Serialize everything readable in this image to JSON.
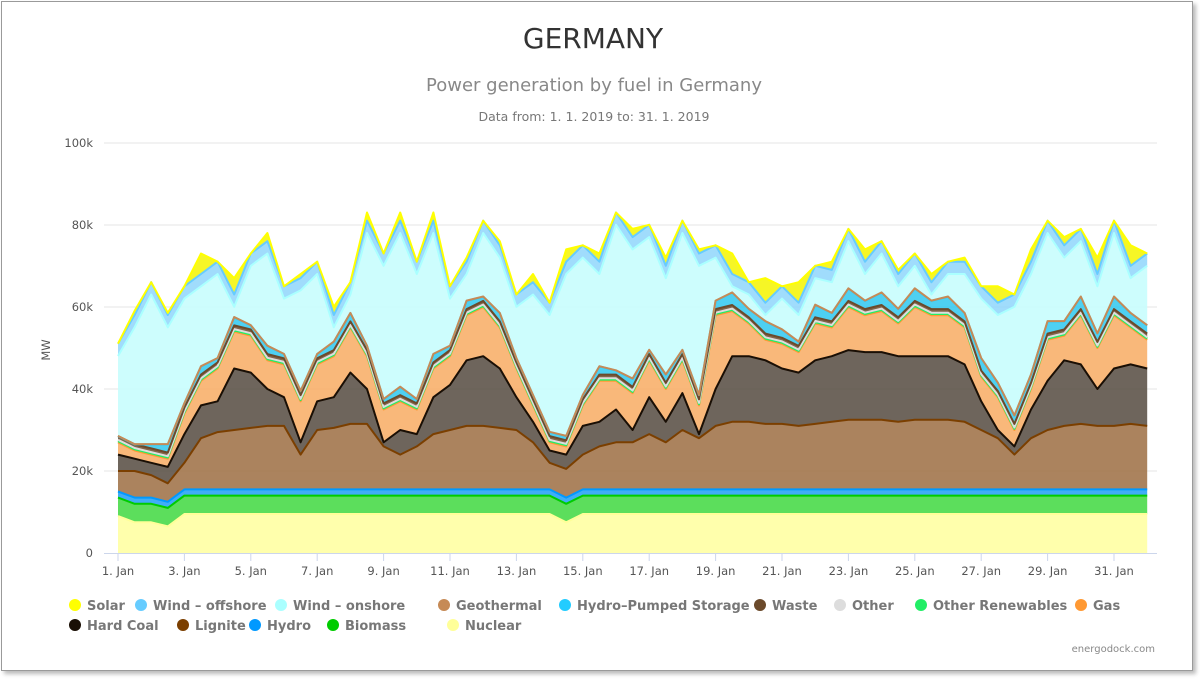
{
  "title": "GERMANY",
  "subtitle": "Power generation by fuel in Germany",
  "date_range": "Data from: 1. 1. 2019 to: 31. 1. 2019",
  "credits": "energodock.com",
  "chart_data": {
    "type": "area",
    "stacked": true,
    "ylabel": "MW",
    "ylim": [
      0,
      100000
    ],
    "y_ticks": [
      "0",
      "20k",
      "40k",
      "60k",
      "80k",
      "100k"
    ],
    "y_tick_values": [
      0,
      20000,
      40000,
      60000,
      80000,
      100000
    ],
    "x_ticks": [
      "1. Jan",
      "3. Jan",
      "5. Jan",
      "7. Jan",
      "9. Jan",
      "11. Jan",
      "13. Jan",
      "15. Jan",
      "17. Jan",
      "19. Jan",
      "21. Jan",
      "23. Jan",
      "25. Jan",
      "27. Jan",
      "29. Jan",
      "31. Jan"
    ],
    "x_start": "2019-01-01 00:00",
    "x_interval_hours": 12,
    "grid": true,
    "legend_placement": "bottom",
    "series": [
      {
        "name": "Solar",
        "color": "#ffff00",
        "fill": "#f5f500",
        "values": [
          0,
          1000,
          0,
          500,
          0,
          5000,
          0,
          4000,
          0,
          2000,
          0,
          1000,
          0,
          2000,
          0,
          2000,
          0,
          2000,
          0,
          2000,
          0,
          1000,
          0,
          1000,
          0,
          2000,
          0,
          3000,
          0,
          2000,
          0,
          2000,
          0,
          2000,
          0,
          1000,
          0,
          5000,
          0,
          6000,
          0,
          5000,
          0,
          2000,
          0,
          3000,
          0,
          1000,
          0,
          2000,
          0,
          1000,
          0,
          4000,
          0,
          3000,
          0,
          2000,
          0,
          4000,
          0,
          5000,
          0
        ]
      },
      {
        "name": "Wind – offshore",
        "color": "#66ccff",
        "fill": "#8fd6fb",
        "values": [
          3000,
          3000,
          3000,
          3000,
          3000,
          3000,
          3000,
          3000,
          3000,
          3000,
          3000,
          3000,
          3000,
          3000,
          3000,
          3000,
          3000,
          3000,
          3000,
          3000,
          3000,
          3000,
          3000,
          3000,
          3000,
          3000,
          3000,
          3000,
          3000,
          3000,
          3000,
          3000,
          3000,
          3000,
          3000,
          3000,
          3000,
          3000,
          3000,
          3000,
          3000,
          3000,
          3000,
          3000,
          3000,
          3000,
          3000,
          3000,
          3000,
          3000,
          3000,
          3000,
          3000,
          3000,
          3000,
          3000,
          3000,
          3000,
          3000,
          3000,
          3000,
          3000,
          3000
        ]
      },
      {
        "name": "Wind – onshore",
        "color": "#aaffff",
        "fill": "#c4fdfd",
        "values": [
          19500,
          28500,
          36500,
          28500,
          25500,
          19500,
          20500,
          2500,
          14500,
          22500,
          13500,
          24500,
          19500,
          3500,
          4500,
          27500,
          32500,
          37500,
          30500,
          29500,
          11500,
          6500,
          15500,
          13500,
          12500,
          24500,
          28500,
          39500,
          33500,
          22500,
          35500,
          31500,
          27500,
          23500,
          28500,
          31500,
          10500,
          1500,
          3500,
          1500,
          7500,
          6500,
          6500,
          7500,
          11500,
          6500,
          9500,
          5500,
          5500,
          1500,
          5500,
          9500,
          14500,
          16500,
          26500,
          24500,
          21500,
          15500,
          13500,
          11500,
          15500,
          8500,
          14500
        ]
      },
      {
        "name": "Geothermal",
        "color": "#c68a56",
        "fill": "#c68a56",
        "values": [
          50,
          50,
          50,
          50,
          50,
          50,
          50,
          50,
          50,
          50,
          50,
          50,
          50,
          50,
          50,
          50,
          50,
          50,
          50,
          50,
          50,
          50,
          50,
          50,
          50,
          50,
          50,
          50,
          50,
          50,
          50,
          50,
          50,
          50,
          50,
          50,
          50,
          50,
          50,
          50,
          50,
          50,
          50,
          50,
          50,
          50,
          50,
          50,
          50,
          50,
          50,
          50,
          50,
          50,
          50,
          50,
          50,
          50,
          50,
          50,
          50,
          50,
          50
        ]
      },
      {
        "name": "Hydro–Pumped Storage",
        "color": "#22ccff",
        "fill": "#2fc8f0",
        "values": [
          0,
          0,
          1000,
          2000,
          1000,
          2000,
          1000,
          2000,
          1000,
          2000,
          1000,
          1000,
          1000,
          2000,
          2000,
          1000,
          1000,
          2000,
          1000,
          2000,
          1000,
          2000,
          1000,
          2000,
          1000,
          1000,
          1000,
          1000,
          1000,
          2000,
          1000,
          2000,
          1000,
          2000,
          1000,
          1000,
          2000,
          3000,
          2000,
          3000,
          2000,
          1000,
          3000,
          2000,
          3000,
          2000,
          3000,
          2000,
          3000,
          2000,
          3000,
          2000,
          3000,
          2000,
          2000,
          2000,
          3000,
          2000,
          3000,
          2000,
          3000,
          2000,
          2000
        ]
      },
      {
        "name": "Waste",
        "color": "#6b4a2b",
        "fill": "#6b4a2b",
        "values": [
          900,
          900,
          900,
          900,
          900,
          900,
          900,
          900,
          900,
          900,
          900,
          900,
          900,
          900,
          900,
          900,
          900,
          900,
          900,
          900,
          900,
          900,
          900,
          900,
          900,
          900,
          900,
          900,
          900,
          900,
          900,
          900,
          900,
          900,
          900,
          900,
          900,
          900,
          900,
          900,
          900,
          900,
          900,
          900,
          900,
          900,
          900,
          900,
          900,
          900,
          900,
          900,
          900,
          900,
          900,
          900,
          900,
          900,
          900,
          900,
          900,
          900,
          900
        ]
      },
      {
        "name": "Other",
        "color": "#dddddd",
        "fill": "#dddddd",
        "values": [
          300,
          300,
          300,
          300,
          300,
          300,
          300,
          300,
          300,
          300,
          300,
          300,
          300,
          300,
          300,
          300,
          300,
          300,
          300,
          300,
          300,
          300,
          300,
          300,
          300,
          300,
          300,
          300,
          300,
          300,
          300,
          300,
          300,
          300,
          300,
          300,
          300,
          300,
          300,
          300,
          300,
          300,
          300,
          300,
          300,
          300,
          300,
          300,
          300,
          300,
          300,
          300,
          300,
          300,
          300,
          300,
          300,
          300,
          300,
          300,
          300,
          300,
          300
        ]
      },
      {
        "name": "Other Renewables",
        "color": "#22ee66",
        "fill": "#7fe3a0",
        "values": [
          300,
          300,
          300,
          300,
          300,
          300,
          300,
          300,
          300,
          300,
          300,
          300,
          300,
          300,
          300,
          300,
          300,
          300,
          300,
          300,
          300,
          300,
          300,
          300,
          300,
          300,
          300,
          300,
          300,
          300,
          300,
          300,
          300,
          300,
          300,
          300,
          300,
          300,
          300,
          300,
          300,
          300,
          300,
          300,
          300,
          300,
          300,
          300,
          300,
          300,
          300,
          300,
          300,
          300,
          300,
          300,
          300,
          300,
          300,
          300,
          300,
          300,
          300
        ]
      },
      {
        "name": "Gas",
        "color": "#ff9933",
        "fill": "#f8ab63",
        "values": [
          3000,
          2000,
          2000,
          2000,
          5000,
          6000,
          8000,
          9000,
          9000,
          7000,
          8000,
          10000,
          9000,
          10000,
          11000,
          8000,
          8000,
          7000,
          6000,
          7000,
          7000,
          11000,
          12000,
          10000,
          7000,
          4000,
          2000,
          2000,
          5000,
          10000,
          7000,
          9000,
          9000,
          8000,
          8000,
          7000,
          18000,
          11000,
          8000,
          5000,
          6000,
          5000,
          9000,
          7000,
          10500,
          9000,
          10000,
          8000,
          12000,
          10000,
          10000,
          9000,
          6000,
          8000,
          4000,
          5000,
          10000,
          6000,
          12000,
          10000,
          13000,
          9000,
          7000
        ]
      },
      {
        "name": "Hard Coal",
        "color": "#1a0f05",
        "fill": "#554a3f",
        "values": [
          4000,
          3000,
          3000,
          4000,
          7000,
          8000,
          7500,
          15000,
          13500,
          9000,
          7000,
          3000,
          7000,
          7500,
          12500,
          8500,
          1000,
          6000,
          3000,
          9000,
          11000,
          16000,
          17000,
          14500,
          8000,
          5000,
          3000,
          3500,
          7000,
          6000,
          8000,
          3000,
          9000,
          5000,
          9000,
          1000,
          9000,
          16000,
          16000,
          15500,
          13500,
          13000,
          15500,
          16000,
          17000,
          16500,
          16500,
          16000,
          15500,
          15500,
          15500,
          14000,
          7000,
          2000,
          2000,
          7000,
          12000,
          16000,
          14500,
          9000,
          14000,
          14500,
          14000
        ]
      },
      {
        "name": "Lignite",
        "color": "#7b3f00",
        "fill": "#9c6d42",
        "values": [
          5000,
          6500,
          5500,
          4500,
          6500,
          12500,
          14000,
          14500,
          15000,
          15500,
          15500,
          8500,
          14500,
          15000,
          16000,
          16000,
          10500,
          8500,
          10500,
          13500,
          14500,
          15500,
          15500,
          15000,
          14500,
          11500,
          6500,
          7000,
          8500,
          10500,
          11500,
          11500,
          13500,
          11500,
          14500,
          12500,
          15500,
          16500,
          16500,
          16000,
          16000,
          15500,
          16000,
          16500,
          17000,
          17000,
          17000,
          16500,
          17000,
          17000,
          17000,
          16500,
          14500,
          12500,
          8500,
          12500,
          14500,
          15500,
          16000,
          15500,
          15500,
          16000,
          15500
        ]
      },
      {
        "name": "Hydro",
        "color": "#0099ff",
        "fill": "#1e9ff5",
        "values": [
          1500,
          1500,
          1500,
          1500,
          1500,
          1500,
          1500,
          1500,
          1500,
          1500,
          1500,
          1500,
          1500,
          1500,
          1500,
          1500,
          1500,
          1500,
          1500,
          1500,
          1500,
          1500,
          1500,
          1500,
          1500,
          1500,
          1500,
          1500,
          1500,
          1500,
          1500,
          1500,
          1500,
          1500,
          1500,
          1500,
          1500,
          1500,
          1500,
          1500,
          1500,
          1500,
          1500,
          1500,
          1500,
          1500,
          1500,
          1500,
          1500,
          1500,
          1500,
          1500,
          1500,
          1500,
          1500,
          1500,
          1500,
          1500,
          1500,
          1500,
          1500,
          1500,
          1500
        ]
      },
      {
        "name": "Biomass",
        "color": "#00cc00",
        "fill": "#3fd83f",
        "values": [
          4500,
          4500,
          4500,
          4500,
          4500,
          4500,
          4500,
          4500,
          4500,
          4500,
          4500,
          4500,
          4500,
          4500,
          4500,
          4500,
          4500,
          4500,
          4500,
          4500,
          4500,
          4500,
          4500,
          4500,
          4500,
          4500,
          4500,
          4500,
          4500,
          4500,
          4500,
          4500,
          4500,
          4500,
          4500,
          4500,
          4500,
          4500,
          4500,
          4500,
          4500,
          4500,
          4500,
          4500,
          4500,
          4500,
          4500,
          4500,
          4500,
          4500,
          4500,
          4500,
          4500,
          4500,
          4500,
          4500,
          4500,
          4500,
          4500,
          4500,
          4500,
          4500,
          4500
        ]
      },
      {
        "name": "Nuclear",
        "color": "#ffff99",
        "fill": "#ffff9e",
        "values": [
          9000,
          7500,
          7500,
          6500,
          9500,
          9500,
          9500,
          9500,
          9500,
          9500,
          9500,
          9500,
          9500,
          9500,
          9500,
          9500,
          9500,
          9500,
          9500,
          9500,
          9500,
          9500,
          9500,
          9500,
          9500,
          9500,
          9500,
          7500,
          9500,
          9500,
          9500,
          9500,
          9500,
          9500,
          9500,
          9500,
          9500,
          9500,
          9500,
          9500,
          9500,
          9500,
          9500,
          9500,
          9500,
          9500,
          9500,
          9500,
          9500,
          9500,
          9500,
          9500,
          9500,
          9500,
          9500,
          9500,
          9500,
          9500,
          9500,
          9500,
          9500,
          9500,
          9500
        ]
      }
    ]
  }
}
